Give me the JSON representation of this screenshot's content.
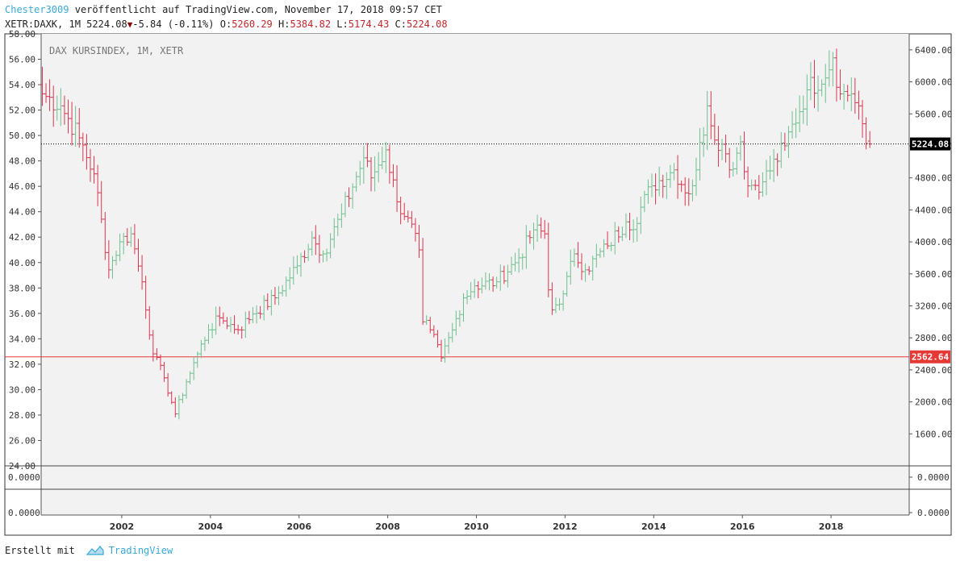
{
  "header": {
    "user": "Chester3009",
    "published_text": "veröffentlicht auf TradingView.com, November 17, 2018 09:57 CET",
    "symbol": "XETR:DAXK, 1M",
    "last": "5224.08",
    "change": "-5.84 (-0.11%)",
    "o_label": "O:",
    "o_value": "5260.29",
    "h_label": "H:",
    "h_value": "5384.82",
    "l_label": "L:",
    "l_value": "5174.43",
    "c_label": "C:",
    "c_value": "5224.08"
  },
  "footer": {
    "created_with": "Erstellt mit",
    "brand": "TradingView"
  },
  "chart_data": {
    "type": "ohlc",
    "watermark": "DAX KURSINDEX, 1M, XETR",
    "interval": "1M",
    "left_axis": {
      "ylim": [
        24,
        58
      ],
      "ticks": [
        "24.00",
        "26.00",
        "28.00",
        "30.00",
        "32.00",
        "34.00",
        "36.00",
        "38.00",
        "40.00",
        "42.00",
        "44.00",
        "46.00",
        "48.00",
        "50.00",
        "52.00",
        "54.00",
        "56.00",
        "58.00"
      ]
    },
    "right_axis": {
      "ylim": [
        1200,
        6600
      ],
      "ticks": [
        "1600.00",
        "2000.00",
        "2400.00",
        "2800.00",
        "3200.00",
        "3600.00",
        "4000.00",
        "4400.00",
        "4800.00",
        "5200.00",
        "5600.00",
        "6000.00",
        "6400.00"
      ]
    },
    "x_ticks": [
      "2002",
      "2004",
      "2006",
      "2008",
      "2010",
      "2012",
      "2014",
      "2016",
      "2018"
    ],
    "last_price": {
      "value": 5224.08,
      "label": "5224.08"
    },
    "horizontal_line": {
      "value": 2562.64,
      "label": "2562.64",
      "color": "#e53935"
    },
    "sub_panels": [
      {
        "label": "0.0000"
      },
      {
        "label": "0.0000"
      }
    ],
    "colors": {
      "up": "#6fbf8f",
      "down": "#d9364f"
    },
    "anchors": [
      [
        "2000-03",
        5850
      ],
      [
        "2000-08",
        5700
      ],
      [
        "2001-01",
        5300
      ],
      [
        "2001-05",
        4850
      ],
      [
        "2001-09",
        3650
      ],
      [
        "2001-12",
        4000
      ],
      [
        "2002-03",
        4100
      ],
      [
        "2002-06",
        3500
      ],
      [
        "2002-09",
        2600
      ],
      [
        "2002-12",
        2300
      ],
      [
        "2003-03",
        1850
      ],
      [
        "2003-06",
        2250
      ],
      [
        "2003-09",
        2600
      ],
      [
        "2003-12",
        2900
      ],
      [
        "2004-03",
        3050
      ],
      [
        "2004-08",
        2900
      ],
      [
        "2004-12",
        3100
      ],
      [
        "2005-06",
        3300
      ],
      [
        "2005-12",
        3700
      ],
      [
        "2006-04",
        4050
      ],
      [
        "2006-07",
        3850
      ],
      [
        "2006-12",
        4350
      ],
      [
        "2007-06",
        5050
      ],
      [
        "2007-08",
        4800
      ],
      [
        "2007-12",
        5150
      ],
      [
        "2008-03",
        4500
      ],
      [
        "2008-06",
        4300
      ],
      [
        "2008-09",
        3900
      ],
      [
        "2008-10",
        3000
      ],
      [
        "2008-12",
        2900
      ],
      [
        "2009-03",
        2550
      ],
      [
        "2009-06",
        2900
      ],
      [
        "2009-09",
        3300
      ],
      [
        "2009-12",
        3450
      ],
      [
        "2010-06",
        3500
      ],
      [
        "2010-12",
        3800
      ],
      [
        "2011-04",
        4150
      ],
      [
        "2011-07",
        4100
      ],
      [
        "2011-08",
        3400
      ],
      [
        "2011-09",
        3150
      ],
      [
        "2011-12",
        3350
      ],
      [
        "2012-03",
        3850
      ],
      [
        "2012-06",
        3650
      ],
      [
        "2012-12",
        3950
      ],
      [
        "2013-05",
        4250
      ],
      [
        "2013-06",
        4150
      ],
      [
        "2013-12",
        4700
      ],
      [
        "2014-06",
        4900
      ],
      [
        "2014-10",
        4600
      ],
      [
        "2014-12",
        4900
      ],
      [
        "2015-03",
        5700
      ],
      [
        "2015-04",
        5450
      ],
      [
        "2015-08",
        5100
      ],
      [
        "2015-09",
        4900
      ],
      [
        "2015-12",
        5250
      ],
      [
        "2016-02",
        4700
      ],
      [
        "2016-06",
        4750
      ],
      [
        "2016-12",
        5200
      ],
      [
        "2017-06",
        5900
      ],
      [
        "2017-12",
        6150
      ],
      [
        "2018-01",
        6300
      ],
      [
        "2018-03",
        5850
      ],
      [
        "2018-06",
        5850
      ],
      [
        "2018-08",
        5700
      ],
      [
        "2018-10",
        5230
      ],
      [
        "2018-11",
        5224
      ]
    ]
  }
}
